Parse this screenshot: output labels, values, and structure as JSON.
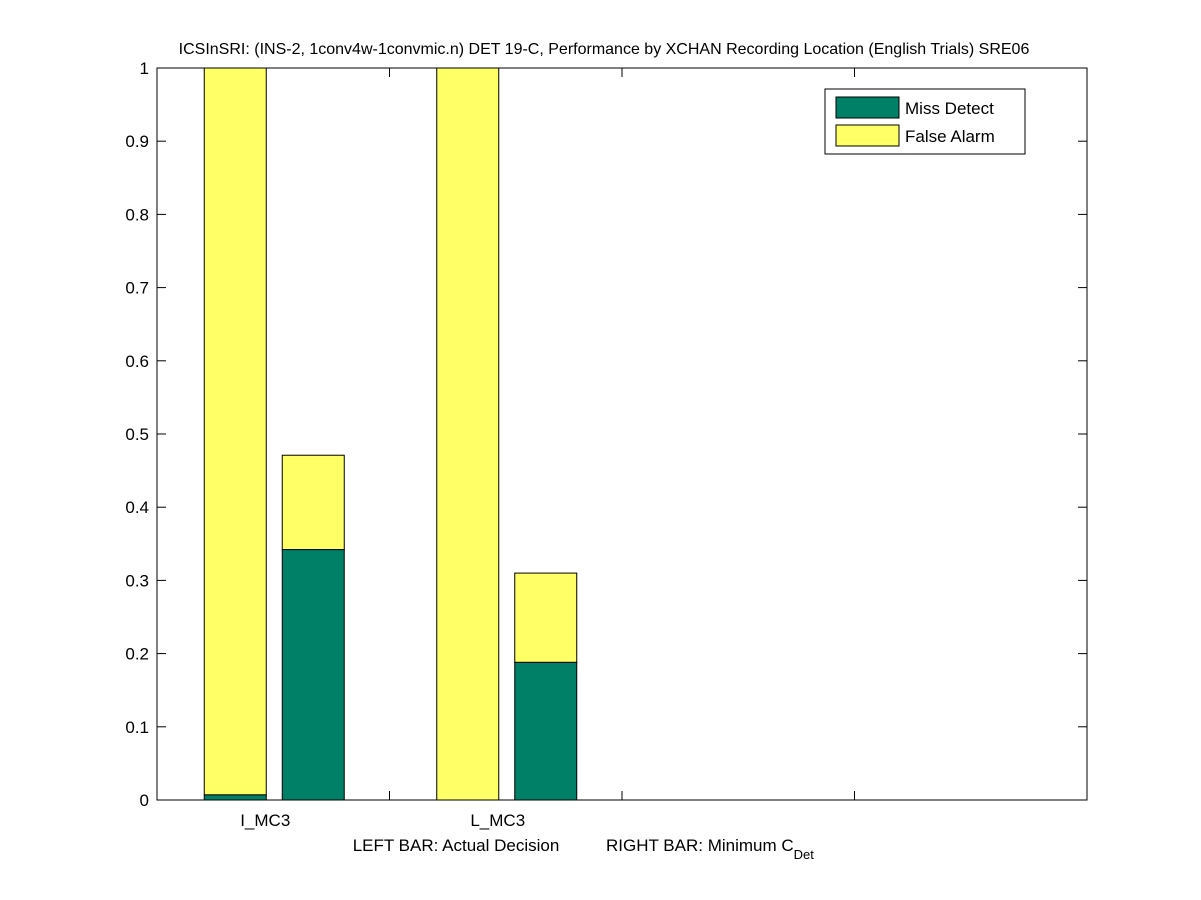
{
  "chart_data": {
    "type": "bar",
    "stacked": true,
    "title": "ICSInSRI: (INS-2, 1conv4w-1convmic.n) DET 19-C,  Performance by XCHAN Recording Location (English Trials) SRE06",
    "xlabel_left": "LEFT BAR: Actual Decision",
    "xlabel_right_main": "RIGHT BAR: Minimum C",
    "xlabel_right_sub": "Det",
    "ylim": [
      0,
      1
    ],
    "yticks": [
      "0",
      "0.1",
      "0.2",
      "0.3",
      "0.4",
      "0.5",
      "0.6",
      "0.7",
      "0.8",
      "0.9",
      "1"
    ],
    "grid": false,
    "legend_position": "top-right",
    "categories": [
      "I_MC3",
      "L_MC3"
    ],
    "bars": [
      {
        "category": "I_MC3",
        "kind": "actual",
        "miss_detect": 0.007,
        "false_alarm": 0.993
      },
      {
        "category": "I_MC3",
        "kind": "minimum",
        "miss_detect": 0.342,
        "false_alarm": 0.129
      },
      {
        "category": "L_MC3",
        "kind": "actual",
        "miss_detect": 0.0,
        "false_alarm": 1.0
      },
      {
        "category": "L_MC3",
        "kind": "minimum",
        "miss_detect": 0.188,
        "false_alarm": 0.122
      }
    ],
    "series": [
      {
        "name": "Miss Detect",
        "color": "#008066"
      },
      {
        "name": "False Alarm",
        "color": "#ffff66"
      }
    ]
  }
}
